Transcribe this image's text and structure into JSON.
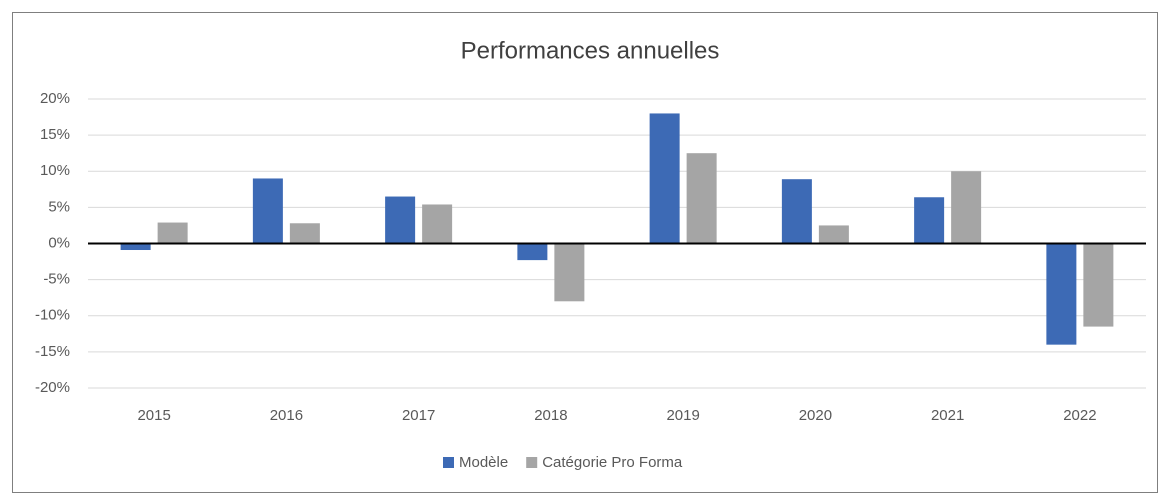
{
  "chart_data": {
    "type": "bar",
    "title": "Performances annuelles",
    "categories": [
      "2015",
      "2016",
      "2017",
      "2018",
      "2019",
      "2020",
      "2021",
      "2022"
    ],
    "series": [
      {
        "name": "Modèle",
        "color": "#3d6ab5",
        "values": [
          -0.9,
          9.0,
          6.5,
          -2.3,
          18.0,
          8.9,
          6.4,
          -14.0
        ]
      },
      {
        "name": "Catégorie Pro Forma",
        "color": "#a5a5a5",
        "values": [
          2.9,
          2.8,
          5.4,
          -8.0,
          12.5,
          2.5,
          10.0,
          -11.5
        ]
      }
    ],
    "ylim": [
      -20,
      20
    ],
    "yticks": [
      {
        "value": -20,
        "label": "-20%"
      },
      {
        "value": -15,
        "label": "-15%"
      },
      {
        "value": -10,
        "label": "-10%"
      },
      {
        "value": -5,
        "label": "-5%"
      },
      {
        "value": 0,
        "label": "0%"
      },
      {
        "value": 5,
        "label": "5%"
      },
      {
        "value": 10,
        "label": "10%"
      },
      {
        "value": 15,
        "label": "15%"
      },
      {
        "value": 20,
        "label": "20%"
      }
    ],
    "grid": true,
    "legend": "bottom"
  }
}
